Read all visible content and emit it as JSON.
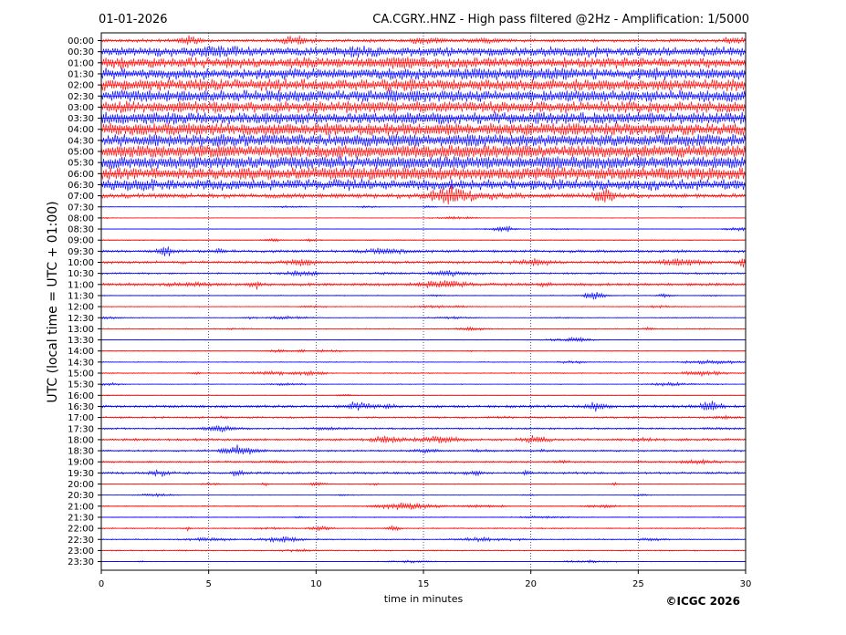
{
  "chart_data": {
    "type": "line",
    "date": "01-01-2026",
    "title": "CA.CGRY..HNZ - High pass filtered @2Hz - Amplification: 1/5000",
    "xlabel": "time in minutes",
    "ylabel": "UTC (local time = UTC + 01:00)",
    "xlim": [
      0,
      30
    ],
    "x_ticks": [
      0,
      5,
      10,
      15,
      20,
      25,
      30
    ],
    "grid": "vertical dotted lines at 5-minute intervals",
    "copyright": "©ICGC 2026",
    "colors": {
      "odd_trace": "#ff0000",
      "even_trace": "#0000ff",
      "grid": "#000080"
    },
    "series": [
      {
        "label": "00:00",
        "color": "red",
        "level": 2
      },
      {
        "label": "00:30",
        "color": "blue",
        "level": 6
      },
      {
        "label": "01:00",
        "color": "red",
        "level": 7
      },
      {
        "label": "01:30",
        "color": "blue",
        "level": 7
      },
      {
        "label": "02:00",
        "color": "red",
        "level": 8
      },
      {
        "label": "02:30",
        "color": "blue",
        "level": 8
      },
      {
        "label": "03:00",
        "color": "red",
        "level": 8
      },
      {
        "label": "03:30",
        "color": "blue",
        "level": 8
      },
      {
        "label": "04:00",
        "color": "red",
        "level": 9
      },
      {
        "label": "04:30",
        "color": "blue",
        "level": 9
      },
      {
        "label": "05:00",
        "color": "red",
        "level": 10
      },
      {
        "label": "05:30",
        "color": "blue",
        "level": 10
      },
      {
        "label": "06:00",
        "color": "red",
        "level": 9
      },
      {
        "label": "06:30",
        "color": "blue",
        "level": 7
      },
      {
        "label": "07:00",
        "color": "red",
        "level": 3
      },
      {
        "label": "07:30",
        "color": "blue",
        "level": 0.4
      },
      {
        "label": "08:00",
        "color": "red",
        "level": 0.4
      },
      {
        "label": "08:30",
        "color": "blue",
        "level": 0.4
      },
      {
        "label": "09:00",
        "color": "red",
        "level": 0.6
      },
      {
        "label": "09:30",
        "color": "blue",
        "level": 1.8
      },
      {
        "label": "10:00",
        "color": "red",
        "level": 1.8
      },
      {
        "label": "10:30",
        "color": "blue",
        "level": 1.2
      },
      {
        "label": "11:00",
        "color": "red",
        "level": 1.8
      },
      {
        "label": "11:30",
        "color": "blue",
        "level": 0.6
      },
      {
        "label": "12:00",
        "color": "red",
        "level": 0.6
      },
      {
        "label": "12:30",
        "color": "blue",
        "level": 0.5
      },
      {
        "label": "13:00",
        "color": "red",
        "level": 0.6
      },
      {
        "label": "13:30",
        "color": "blue",
        "level": 0.4
      },
      {
        "label": "14:00",
        "color": "red",
        "level": 0.5
      },
      {
        "label": "14:30",
        "color": "blue",
        "level": 0.6
      },
      {
        "label": "15:00",
        "color": "red",
        "level": 0.8
      },
      {
        "label": "15:30",
        "color": "blue",
        "level": 0.5
      },
      {
        "label": "16:00",
        "color": "red",
        "level": 0.4
      },
      {
        "label": "16:30",
        "color": "blue",
        "level": 1.8
      },
      {
        "label": "17:00",
        "color": "red",
        "level": 1.2
      },
      {
        "label": "17:30",
        "color": "blue",
        "level": 1.2
      },
      {
        "label": "18:00",
        "color": "red",
        "level": 1.5
      },
      {
        "label": "18:30",
        "color": "blue",
        "level": 1.2
      },
      {
        "label": "19:00",
        "color": "red",
        "level": 1.2
      },
      {
        "label": "19:30",
        "color": "blue",
        "level": 1.5
      },
      {
        "label": "20:00",
        "color": "red",
        "level": 0.6
      },
      {
        "label": "20:30",
        "color": "blue",
        "level": 0.4
      },
      {
        "label": "21:00",
        "color": "red",
        "level": 0.7
      },
      {
        "label": "21:30",
        "color": "blue",
        "level": 0.6
      },
      {
        "label": "22:00",
        "color": "red",
        "level": 0.8
      },
      {
        "label": "22:30",
        "color": "blue",
        "level": 0.8
      },
      {
        "label": "23:00",
        "color": "red",
        "level": 0.8
      },
      {
        "label": "23:30",
        "color": "blue",
        "level": 0.4
      }
    ]
  }
}
